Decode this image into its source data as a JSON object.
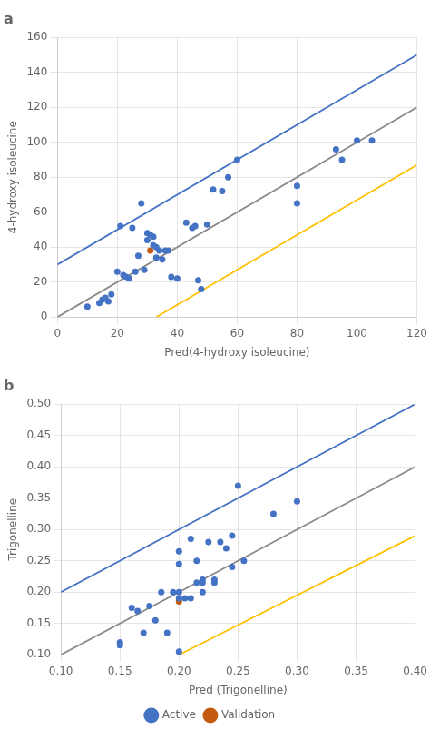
{
  "chart_data": [
    {
      "type": "scatter",
      "title": "a",
      "xlabel": "Pred(4-hydroxy isoleucine)",
      "ylabel": "4-hydroxy isoleucine",
      "xlim": [
        0,
        120
      ],
      "ylim": [
        0,
        160
      ],
      "xticks": [
        0,
        20,
        40,
        60,
        80,
        100,
        120
      ],
      "yticks": [
        0,
        20,
        40,
        60,
        80,
        100,
        120,
        140,
        160
      ],
      "grid": true,
      "series": [
        {
          "type": "line",
          "line_style": "solid",
          "color": "#898989",
          "x": [
            0,
            120
          ],
          "values": [
            0,
            120
          ]
        },
        {
          "type": "line",
          "line_style": "solid",
          "color": "#4472C4",
          "x": [
            0,
            120
          ],
          "values": [
            30,
            150
          ]
        },
        {
          "type": "line",
          "line_style": "solid",
          "color": "#FFC000",
          "x": [
            33,
            120
          ],
          "values": [
            0,
            87
          ]
        },
        {
          "name": "Active",
          "type": "scatter",
          "marker": "circle",
          "color": "#4472C4",
          "x": [
            10,
            14,
            15,
            16,
            17,
            18,
            20,
            21,
            22,
            23,
            24,
            25,
            26,
            27,
            28,
            29,
            30,
            30,
            31,
            32,
            32,
            33,
            33,
            34,
            35,
            36,
            37,
            38,
            40,
            43,
            45,
            46,
            47,
            48,
            50,
            52,
            55,
            57,
            60,
            80,
            80,
            93,
            95,
            100,
            105
          ],
          "values": [
            6,
            8,
            10,
            11,
            9,
            13,
            26,
            52,
            24,
            23,
            22,
            51,
            26,
            35,
            65,
            27,
            48,
            44,
            47,
            46,
            41,
            40,
            34,
            38,
            33,
            38,
            38,
            23,
            22,
            54,
            51,
            52,
            21,
            16,
            53,
            73,
            72,
            80,
            90,
            65,
            75,
            96,
            90,
            101,
            101
          ]
        },
        {
          "name": "Validation",
          "type": "scatter",
          "marker": "circle",
          "color": "#C55A11",
          "x": [
            31
          ],
          "values": [
            38
          ]
        }
      ]
    },
    {
      "type": "scatter",
      "title": "b",
      "xlabel": "Pred (Trigonelline)",
      "ylabel": "Trigonelline",
      "xlim": [
        0.1,
        0.4
      ],
      "ylim": [
        0.1,
        0.5
      ],
      "xticks": [
        {
          "value": 0.1,
          "label": "0.10"
        },
        0.15,
        {
          "value": 0.2,
          "label": "0.20"
        },
        0.25,
        {
          "value": 0.3,
          "label": "0.30"
        },
        0.35,
        {
          "value": 0.4,
          "label": "0.40"
        }
      ],
      "yticks": [
        {
          "value": 0.1,
          "label": "0.10"
        },
        0.15,
        {
          "value": 0.2,
          "label": "0.20"
        },
        0.25,
        {
          "value": 0.3,
          "label": "0.30"
        },
        0.35,
        {
          "value": 0.4,
          "label": "0.40"
        },
        0.45,
        {
          "value": 0.5,
          "label": "0.50"
        }
      ],
      "grid": true,
      "legend": "bottom",
      "series": [
        {
          "type": "line",
          "line_style": "solid",
          "color": "#898989",
          "x": [
            0.1,
            0.4
          ],
          "values": [
            0.1,
            0.4
          ]
        },
        {
          "type": "line",
          "line_style": "solid",
          "color": "#4472C4",
          "x": [
            0.1,
            0.4
          ],
          "values": [
            0.2,
            0.5
          ]
        },
        {
          "type": "line",
          "line_style": "solid",
          "color": "#FFC000",
          "x": [
            0.2,
            0.4
          ],
          "values": [
            0.1,
            0.29
          ]
        },
        {
          "name": "Active",
          "type": "scatter",
          "marker": "circle",
          "color": "#4472C4",
          "x": [
            0.15,
            0.15,
            0.16,
            0.165,
            0.17,
            0.175,
            0.18,
            0.185,
            0.19,
            0.195,
            0.2,
            0.2,
            0.2,
            0.2,
            0.2,
            0.205,
            0.21,
            0.21,
            0.215,
            0.215,
            0.22,
            0.22,
            0.22,
            0.225,
            0.23,
            0.23,
            0.235,
            0.24,
            0.245,
            0.245,
            0.25,
            0.255,
            0.28,
            0.3
          ],
          "values": [
            0.12,
            0.115,
            0.175,
            0.17,
            0.135,
            0.178,
            0.155,
            0.2,
            0.135,
            0.2,
            0.105,
            0.19,
            0.2,
            0.245,
            0.265,
            0.19,
            0.19,
            0.285,
            0.215,
            0.25,
            0.22,
            0.215,
            0.2,
            0.28,
            0.215,
            0.22,
            0.28,
            0.27,
            0.29,
            0.24,
            0.37,
            0.25,
            0.325,
            0.345
          ]
        },
        {
          "name": "Validation",
          "type": "scatter",
          "marker": "circle",
          "color": "#C55A11",
          "x": [
            0.2
          ],
          "values": [
            0.185
          ]
        }
      ]
    }
  ]
}
